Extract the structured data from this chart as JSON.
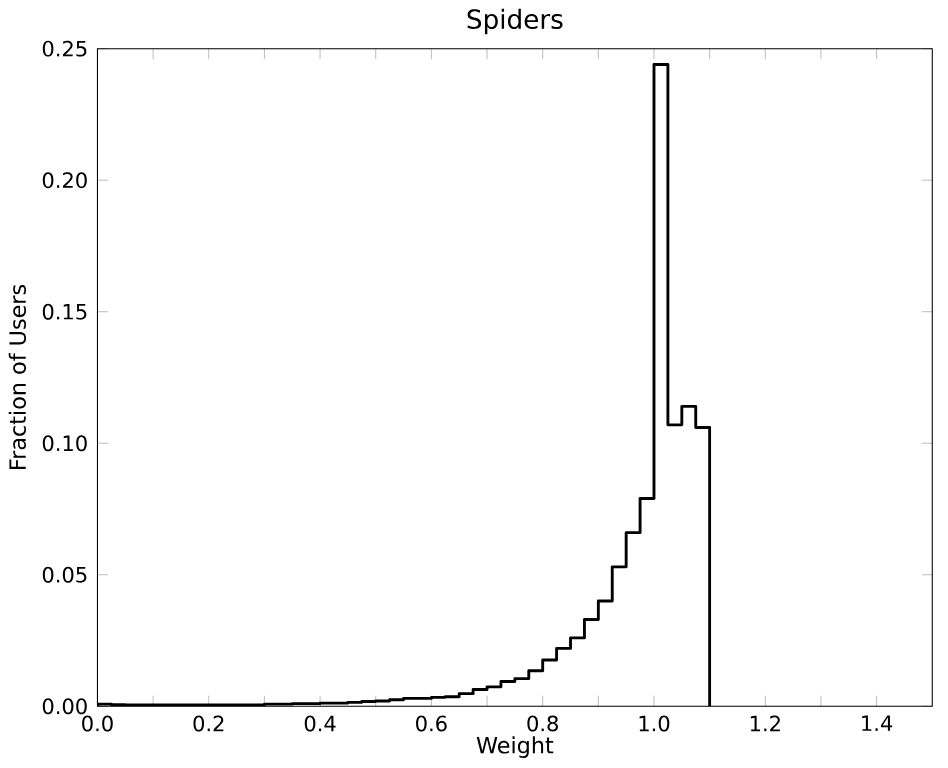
{
  "chart_data": {
    "type": "histogram",
    "title": "Spiders",
    "xlabel": "Weight",
    "ylabel": "Fraction of Users",
    "color": "#000000",
    "bins": [
      0,
      0.025,
      0.05,
      0.075,
      0.1,
      0.125,
      0.15,
      0.175,
      0.2,
      0.225,
      0.25,
      0.275,
      0.3,
      0.325,
      0.35,
      0.375,
      0.4,
      0.425,
      0.45,
      0.475,
      0.5,
      0.525,
      0.55,
      0.575,
      0.6,
      0.625,
      0.65,
      0.675,
      0.7,
      0.725,
      0.75,
      0.775,
      0.8,
      0.825,
      0.85,
      0.875,
      0.9,
      0.925,
      0.95,
      0.975,
      1.0,
      1.025,
      1.05,
      1.075,
      1.1
    ],
    "values": [
      0.0008,
      0.0006,
      0.0005,
      0.0005,
      0.0005,
      0.0005,
      0.0005,
      0.0005,
      0.0005,
      0.0005,
      0.0005,
      0.0005,
      0.0008,
      0.0008,
      0.001,
      0.001,
      0.0012,
      0.0012,
      0.0015,
      0.0018,
      0.002,
      0.0025,
      0.003,
      0.003,
      0.0034,
      0.0036,
      0.0048,
      0.0064,
      0.0074,
      0.0094,
      0.0105,
      0.0135,
      0.0176,
      0.022,
      0.026,
      0.033,
      0.04,
      0.053,
      0.066,
      0.079,
      0.244,
      0.107,
      0.114,
      0.106
    ],
    "xlim": [
      0,
      1.5
    ],
    "ylim": [
      0,
      0.25
    ],
    "xticks": [
      {
        "value": 0,
        "label": "0.0"
      },
      {
        "value": 0.1,
        "label": null
      },
      {
        "value": 0.2,
        "label": "0.2"
      },
      {
        "value": 0.3,
        "label": null
      },
      {
        "value": 0.4,
        "label": "0.4"
      },
      {
        "value": 0.5,
        "label": null
      },
      {
        "value": 0.6,
        "label": "0.6"
      },
      {
        "value": 0.7,
        "label": null
      },
      {
        "value": 0.8,
        "label": "0.8"
      },
      {
        "value": 0.9,
        "label": null
      },
      {
        "value": 1.0,
        "label": "1.0"
      },
      {
        "value": 1.1,
        "label": null
      },
      {
        "value": 1.2,
        "label": "1.2"
      },
      {
        "value": 1.3,
        "label": null
      },
      {
        "value": 1.4,
        "label": "1.4"
      }
    ],
    "yticks": [
      {
        "value": 0,
        "label": "0.00"
      },
      {
        "value": 0.05,
        "label": "0.05"
      },
      {
        "value": 0.1,
        "label": "0.10"
      },
      {
        "value": 0.15,
        "label": "0.15"
      },
      {
        "value": 0.2,
        "label": "0.20"
      },
      {
        "value": 0.25,
        "label": "0.25"
      }
    ],
    "grid": false
  }
}
